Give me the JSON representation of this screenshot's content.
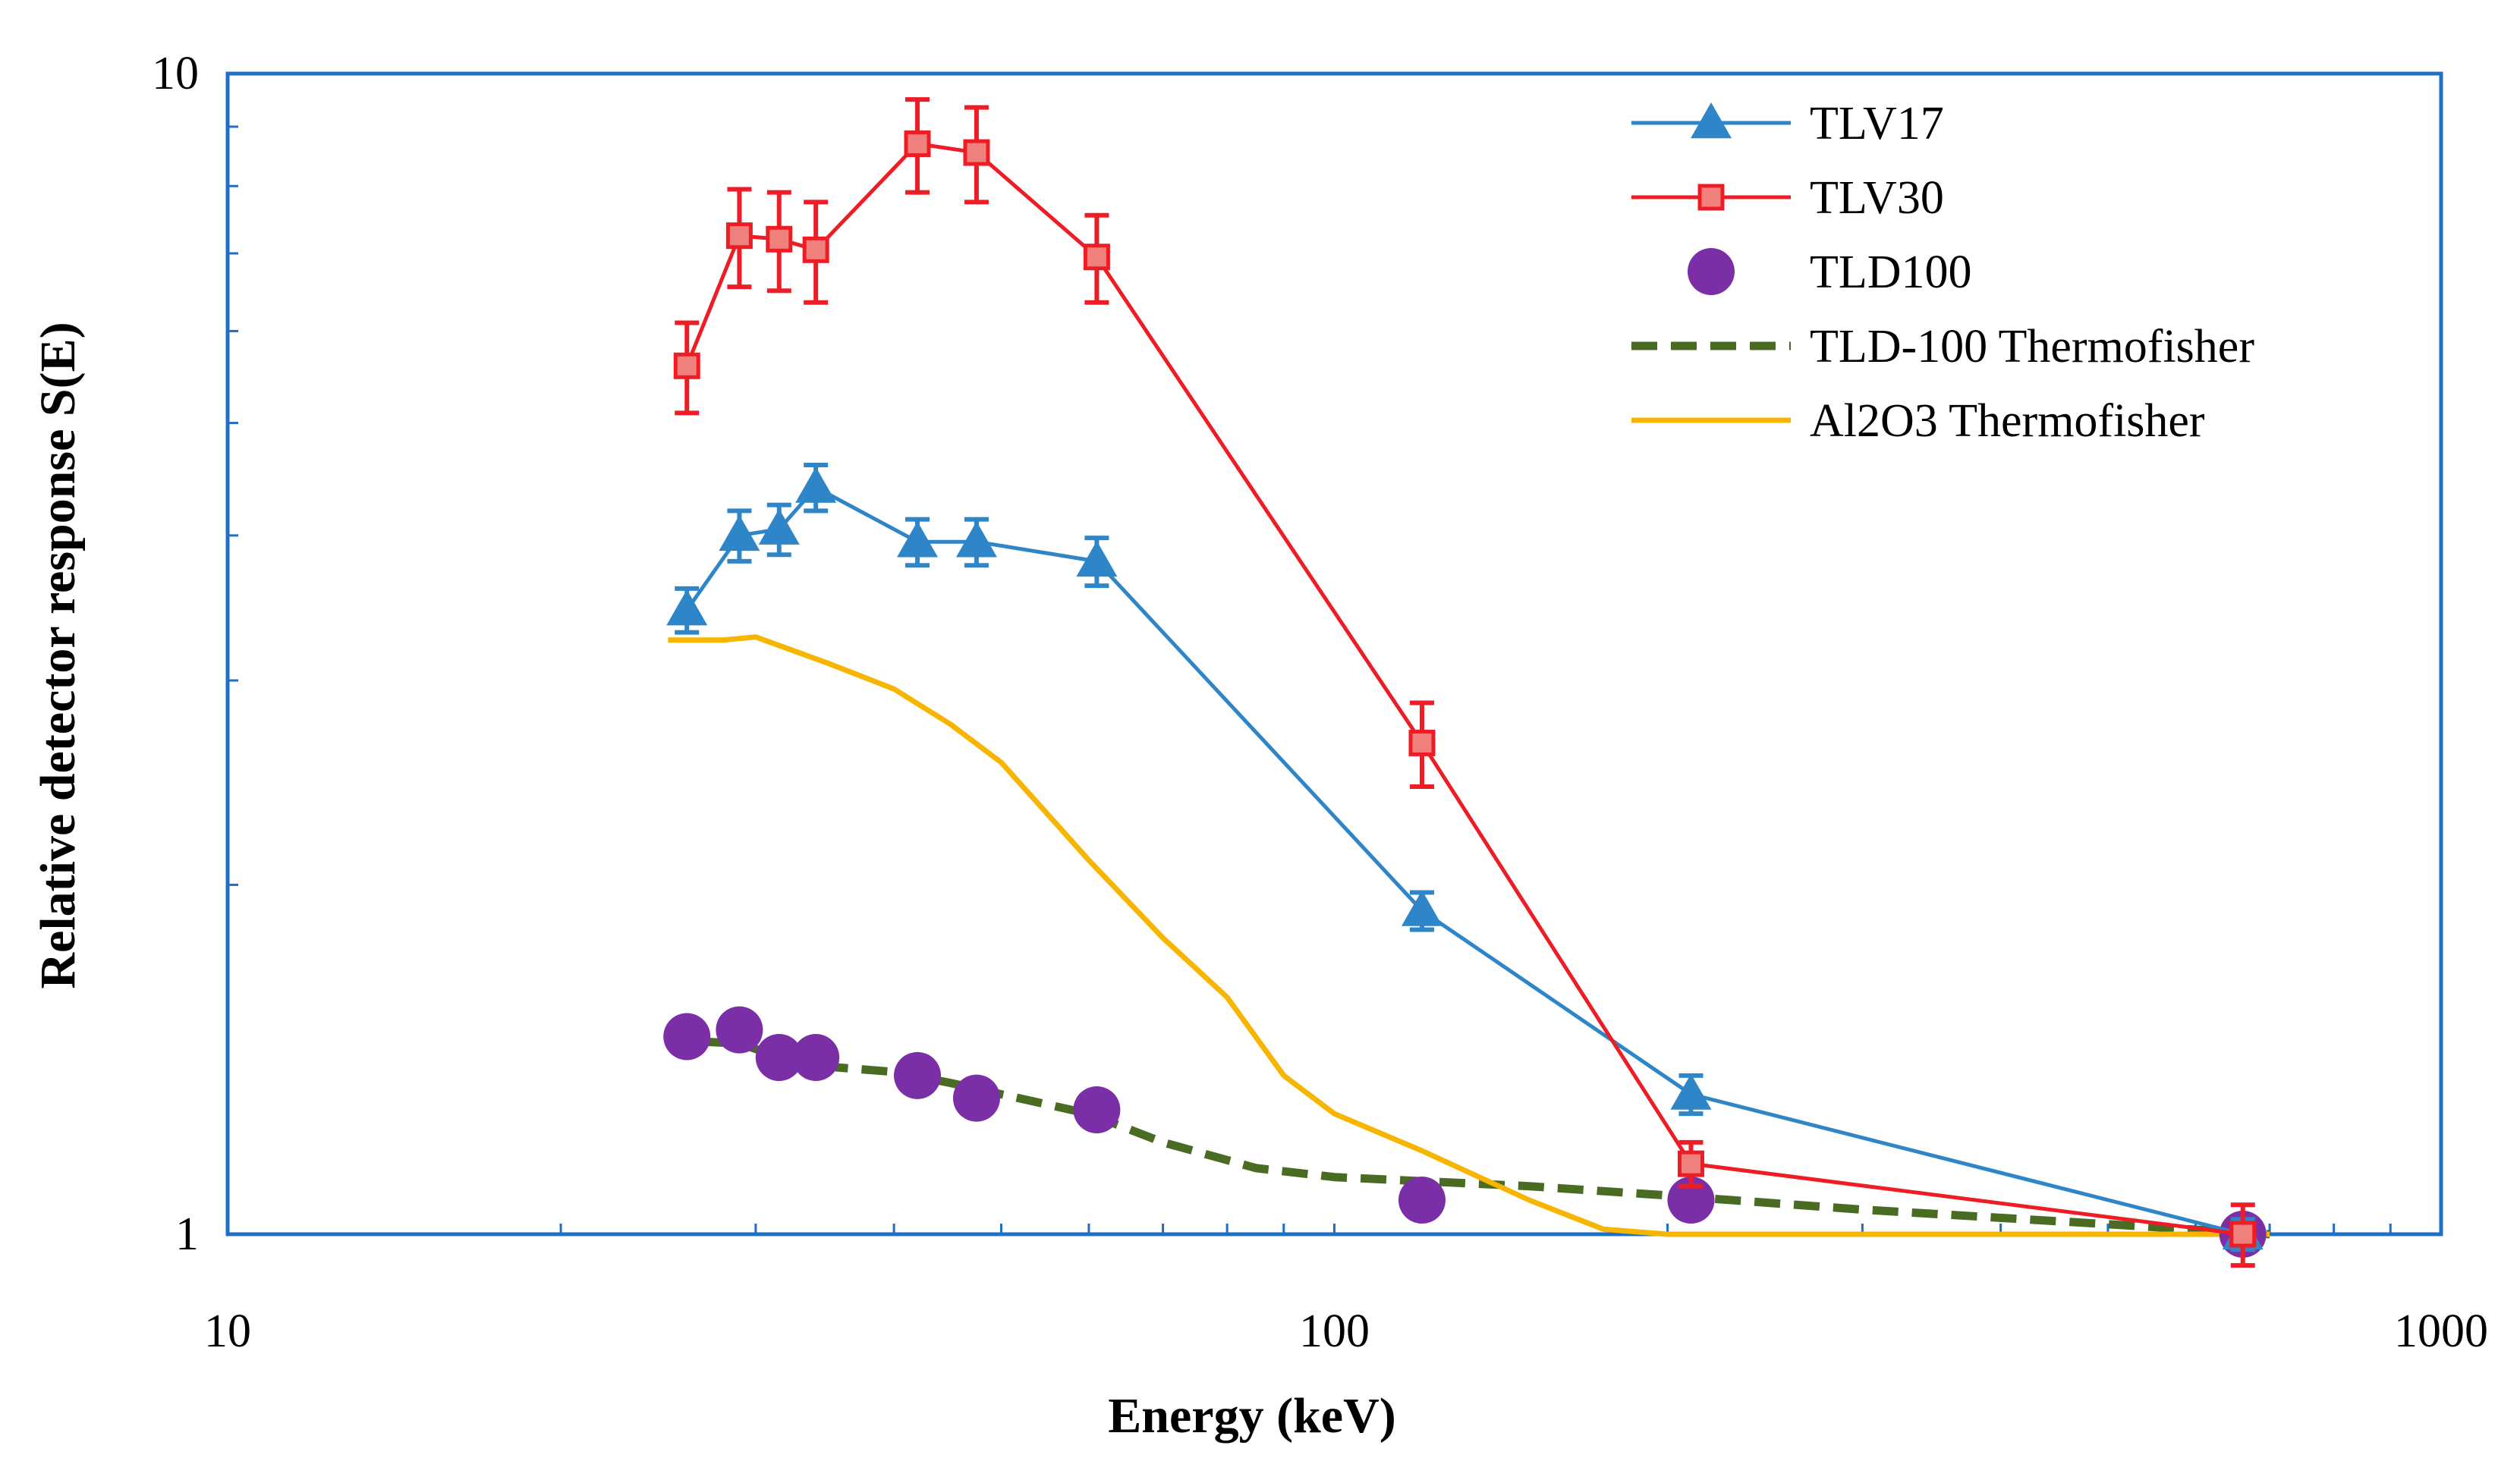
{
  "chart_data": {
    "type": "line",
    "title": "",
    "xlabel": "Energy (keV)",
    "ylabel": "Relative detector response  S(E)",
    "xscale": "log",
    "yscale": "log",
    "xlim": [
      10,
      1000
    ],
    "ylim": [
      1,
      10
    ],
    "x_ticks": [
      10,
      100,
      1000
    ],
    "x_tick_labels": [
      "10",
      "100",
      "1000"
    ],
    "y_ticks": [
      1,
      10
    ],
    "y_tick_labels": [
      "1",
      "10"
    ],
    "legend_position": "top-right",
    "series": [
      {
        "name": "TLV17",
        "color": "#2e86c9",
        "line": "solid",
        "marker": "triangle",
        "x": [
          26,
          29,
          31.5,
          34,
          42,
          47.5,
          61,
          120,
          210,
          662
        ],
        "y": [
          3.45,
          4.0,
          4.05,
          4.4,
          3.95,
          3.95,
          3.8,
          1.9,
          1.32,
          1.0
        ],
        "err": [
          0.15,
          0.2,
          0.2,
          0.2,
          0.18,
          0.18,
          0.18,
          0.07,
          0.05,
          0.03
        ]
      },
      {
        "name": "TLV30",
        "color": "#ee1c25",
        "line": "solid",
        "marker": "square",
        "x": [
          26,
          29,
          31.5,
          34,
          42,
          47.5,
          61,
          120,
          210,
          662
        ],
        "y": [
          5.6,
          7.25,
          7.2,
          7.05,
          8.7,
          8.55,
          6.95,
          2.65,
          1.15,
          1.0
        ],
        "err": [
          0.5,
          0.7,
          0.7,
          0.7,
          0.8,
          0.8,
          0.6,
          0.22,
          0.05,
          0.06
        ]
      },
      {
        "name": "TLD100",
        "color": "#7b2fa6",
        "line": "none",
        "marker": "circle",
        "x": [
          26,
          29,
          31.5,
          34,
          42,
          47.5,
          61,
          120,
          210,
          662
        ],
        "y": [
          1.48,
          1.5,
          1.42,
          1.42,
          1.37,
          1.31,
          1.28,
          1.07,
          1.07,
          1.0
        ],
        "err": [
          0.03,
          0.03,
          0.03,
          0.03,
          0.03,
          0.03,
          0.03,
          0.02,
          0.02,
          0.02
        ]
      },
      {
        "name": "TLD-100 Thermofisher",
        "color": "#4a6b22",
        "line": "dashed",
        "marker": "none",
        "x": [
          25,
          29,
          33,
          40,
          45,
          60,
          70,
          85,
          100,
          150,
          200,
          300,
          500,
          700
        ],
        "y": [
          1.47,
          1.46,
          1.4,
          1.38,
          1.35,
          1.27,
          1.2,
          1.14,
          1.12,
          1.1,
          1.08,
          1.05,
          1.02,
          1.0
        ]
      },
      {
        "name": "Al2O3 Thermofisher",
        "color": "#f7b500",
        "line": "solid",
        "marker": "none",
        "x": [
          25,
          28,
          30,
          35,
          40,
          45,
          50,
          60,
          70,
          80,
          90,
          100,
          120,
          150,
          175,
          200,
          300,
          500,
          700
        ],
        "y": [
          3.25,
          3.25,
          3.27,
          3.1,
          2.95,
          2.75,
          2.55,
          2.1,
          1.8,
          1.6,
          1.37,
          1.27,
          1.18,
          1.07,
          1.01,
          1.0,
          1.0,
          1.0,
          1.0
        ]
      }
    ]
  }
}
